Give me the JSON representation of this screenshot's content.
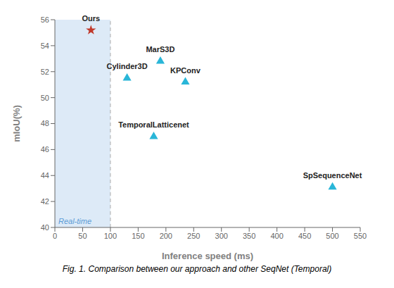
{
  "chart_data": {
    "type": "scatter",
    "xlabel": "Inference speed (ms)",
    "ylabel": "mIoU(%)",
    "xlim": [
      0,
      550
    ],
    "ylim": [
      40,
      56
    ],
    "xticks": [
      0,
      50,
      100,
      150,
      200,
      250,
      300,
      350,
      400,
      450,
      500,
      550
    ],
    "yticks": [
      40,
      42,
      44,
      46,
      48,
      50,
      52,
      54,
      56
    ],
    "x": [
      65,
      190,
      130,
      235,
      178,
      500
    ],
    "values": [
      55.2,
      52.8,
      51.5,
      51.2,
      47.0,
      43.1
    ],
    "labels": [
      "Ours",
      "MarS3D",
      "Cylinder3D",
      "KPConv",
      "TemporalLatticenet",
      "SpSequenceNet"
    ],
    "colors": [
      "#c0392b",
      "#29b6d8",
      "#29b6d8",
      "#29b6d8",
      "#29b6d8",
      "#29b6d8"
    ],
    "markers": [
      "star",
      "triangle",
      "triangle",
      "triangle",
      "triangle",
      "triangle"
    ],
    "regions": [
      {
        "x": [
          0,
          100
        ],
        "label": "Real-time",
        "color": "#ddeaf7"
      }
    ],
    "vlines": [
      {
        "x": 100,
        "line_style": "dashed",
        "color": "#aaaaaa"
      }
    ],
    "grid": false,
    "caption": "Fig. 1.  Comparison between our approach and other SeqNet (Temporal)"
  }
}
